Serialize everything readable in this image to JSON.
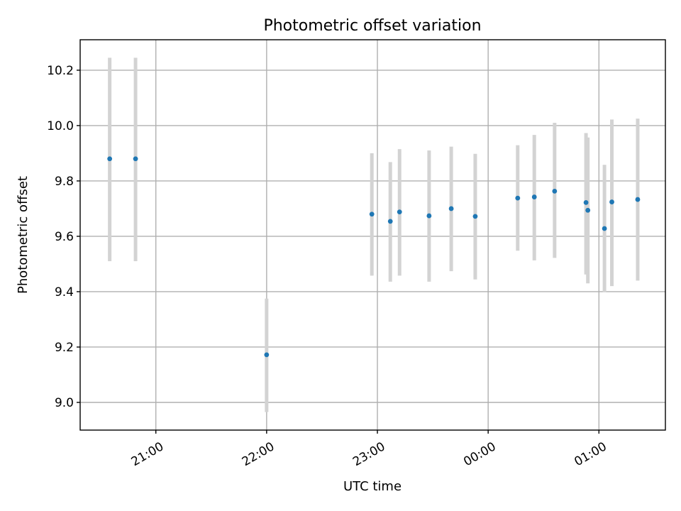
{
  "chart_data": {
    "type": "scatter",
    "title": "Photometric offset variation",
    "xlabel": "UTC time",
    "ylabel": "Photometric offset",
    "grid": true,
    "ylim": [
      8.9,
      10.31
    ],
    "xlim": [
      "20:19",
      "01:36"
    ],
    "yticks": [
      9.0,
      9.2,
      9.4,
      9.6,
      9.8,
      10.0,
      10.2
    ],
    "xticks": [
      {
        "time": "21:00",
        "label": "21:00"
      },
      {
        "time": "22:00",
        "label": "22:00"
      },
      {
        "time": "23:00",
        "label": "23:00"
      },
      {
        "time": "00:00",
        "label": "00:00"
      },
      {
        "time": "01:00",
        "label": "01:00"
      }
    ],
    "marker_color": "#1f77b4",
    "errorbar_color": "#d3d3d3",
    "points": [
      {
        "time": "20:35",
        "y": 9.88,
        "low": 9.51,
        "high": 10.245
      },
      {
        "time": "20:49",
        "y": 9.88,
        "low": 9.51,
        "high": 10.245
      },
      {
        "time": "22:00",
        "y": 9.172,
        "low": 8.965,
        "high": 9.375
      },
      {
        "time": "22:57",
        "y": 9.68,
        "low": 9.458,
        "high": 9.9
      },
      {
        "time": "23:07",
        "y": 9.654,
        "low": 9.436,
        "high": 9.868
      },
      {
        "time": "23:12",
        "y": 9.688,
        "low": 9.458,
        "high": 9.915
      },
      {
        "time": "23:28",
        "y": 9.674,
        "low": 9.436,
        "high": 9.91
      },
      {
        "time": "23:40",
        "y": 9.7,
        "low": 9.474,
        "high": 9.924
      },
      {
        "time": "23:53",
        "y": 9.672,
        "low": 9.444,
        "high": 9.898
      },
      {
        "time": "00:16",
        "y": 9.738,
        "low": 9.548,
        "high": 9.929
      },
      {
        "time": "00:25",
        "y": 9.742,
        "low": 9.513,
        "high": 9.966
      },
      {
        "time": "00:36",
        "y": 9.763,
        "low": 9.522,
        "high": 10.01
      },
      {
        "time": "00:53",
        "y": 9.722,
        "low": 9.462,
        "high": 9.973
      },
      {
        "time": "00:54",
        "y": 9.694,
        "low": 9.43,
        "high": 9.957
      },
      {
        "time": "01:03",
        "y": 9.628,
        "low": 9.398,
        "high": 9.858
      },
      {
        "time": "01:07",
        "y": 9.724,
        "low": 9.42,
        "high": 10.022
      },
      {
        "time": "01:21",
        "y": 9.733,
        "low": 9.44,
        "high": 10.025
      }
    ]
  }
}
